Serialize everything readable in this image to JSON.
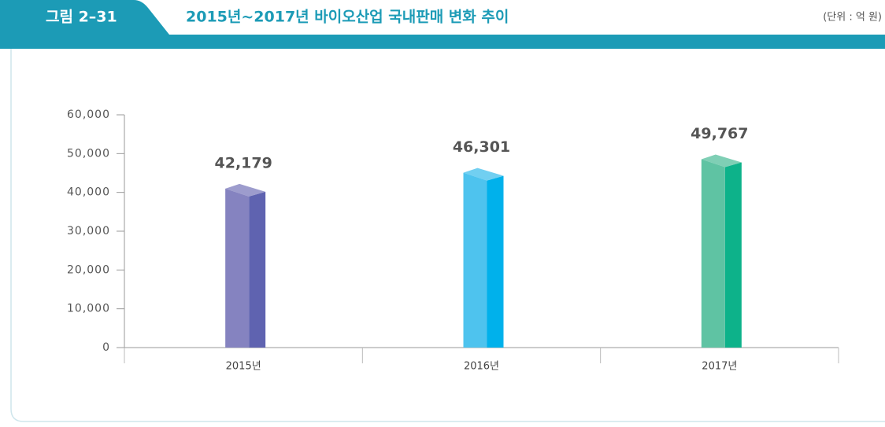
{
  "figure_label": "그림 2–31",
  "unit": "(단위 : 억 원)",
  "chart_data": {
    "type": "bar3d",
    "title": "2015년~2017년 바이오산업 국내판매 변화 추이",
    "categories": [
      "2015년",
      "2016년",
      "2017년"
    ],
    "values": [
      42179,
      46301,
      49767
    ],
    "value_labels": [
      "42,179",
      "46,301",
      "49,767"
    ],
    "colors": [
      [
        "#8583c0",
        "#5f63b0"
      ],
      [
        "#4ec3ee",
        "#00b1eb"
      ],
      [
        "#5fc3a3",
        "#0db28a"
      ]
    ],
    "ylim": [
      0,
      60000
    ],
    "yticks": [
      0,
      {
        "value": 10000,
        "label": "10,000"
      },
      {
        "value": 20000,
        "label": "20,000"
      },
      {
        "value": 30000,
        "label": "30,000"
      },
      {
        "value": 40000,
        "label": "40,000"
      },
      {
        "value": 50000,
        "label": "50,000"
      },
      {
        "value": 60000,
        "label": "60,000"
      }
    ]
  }
}
